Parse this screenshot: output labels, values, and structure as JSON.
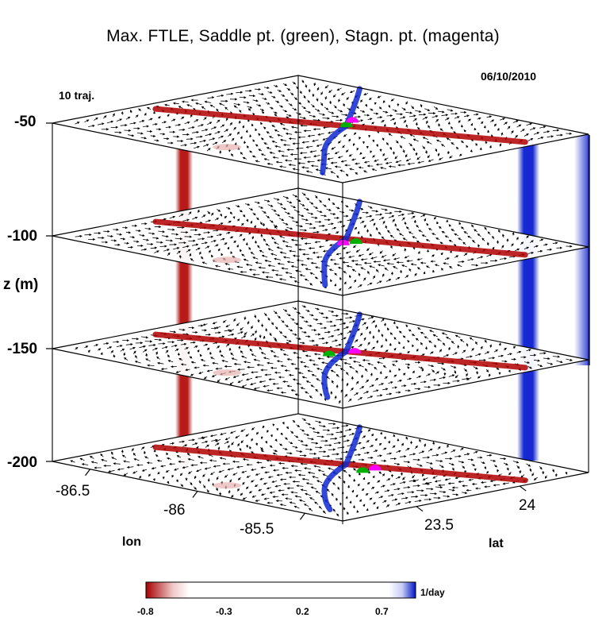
{
  "title": "Max. FTLE, Saddle pt. (green), Stagn. pt. (magenta)",
  "date": "06/10/2010",
  "trajectories_label": "10 traj.",
  "z_axis": {
    "label": "z  (m)",
    "ticks": [
      "-50",
      "-100",
      "-150",
      "-200"
    ]
  },
  "lon_axis": {
    "label": "lon",
    "ticks": [
      "-86.5",
      "-86",
      "-85.5"
    ]
  },
  "lat_axis": {
    "label": "lat",
    "ticks": [
      "23.5",
      "24"
    ]
  },
  "colorbar": {
    "unit": "1/day",
    "ticks": [
      "-0.8",
      "-0.3",
      "0.2",
      "0.7"
    ],
    "min": -0.8,
    "max": 0.9,
    "neg_color": "#a50000",
    "pos_color": "#0014c8"
  },
  "colors": {
    "saddle_point": "#00b000",
    "stagnation_point": "#ff00ff"
  }
}
